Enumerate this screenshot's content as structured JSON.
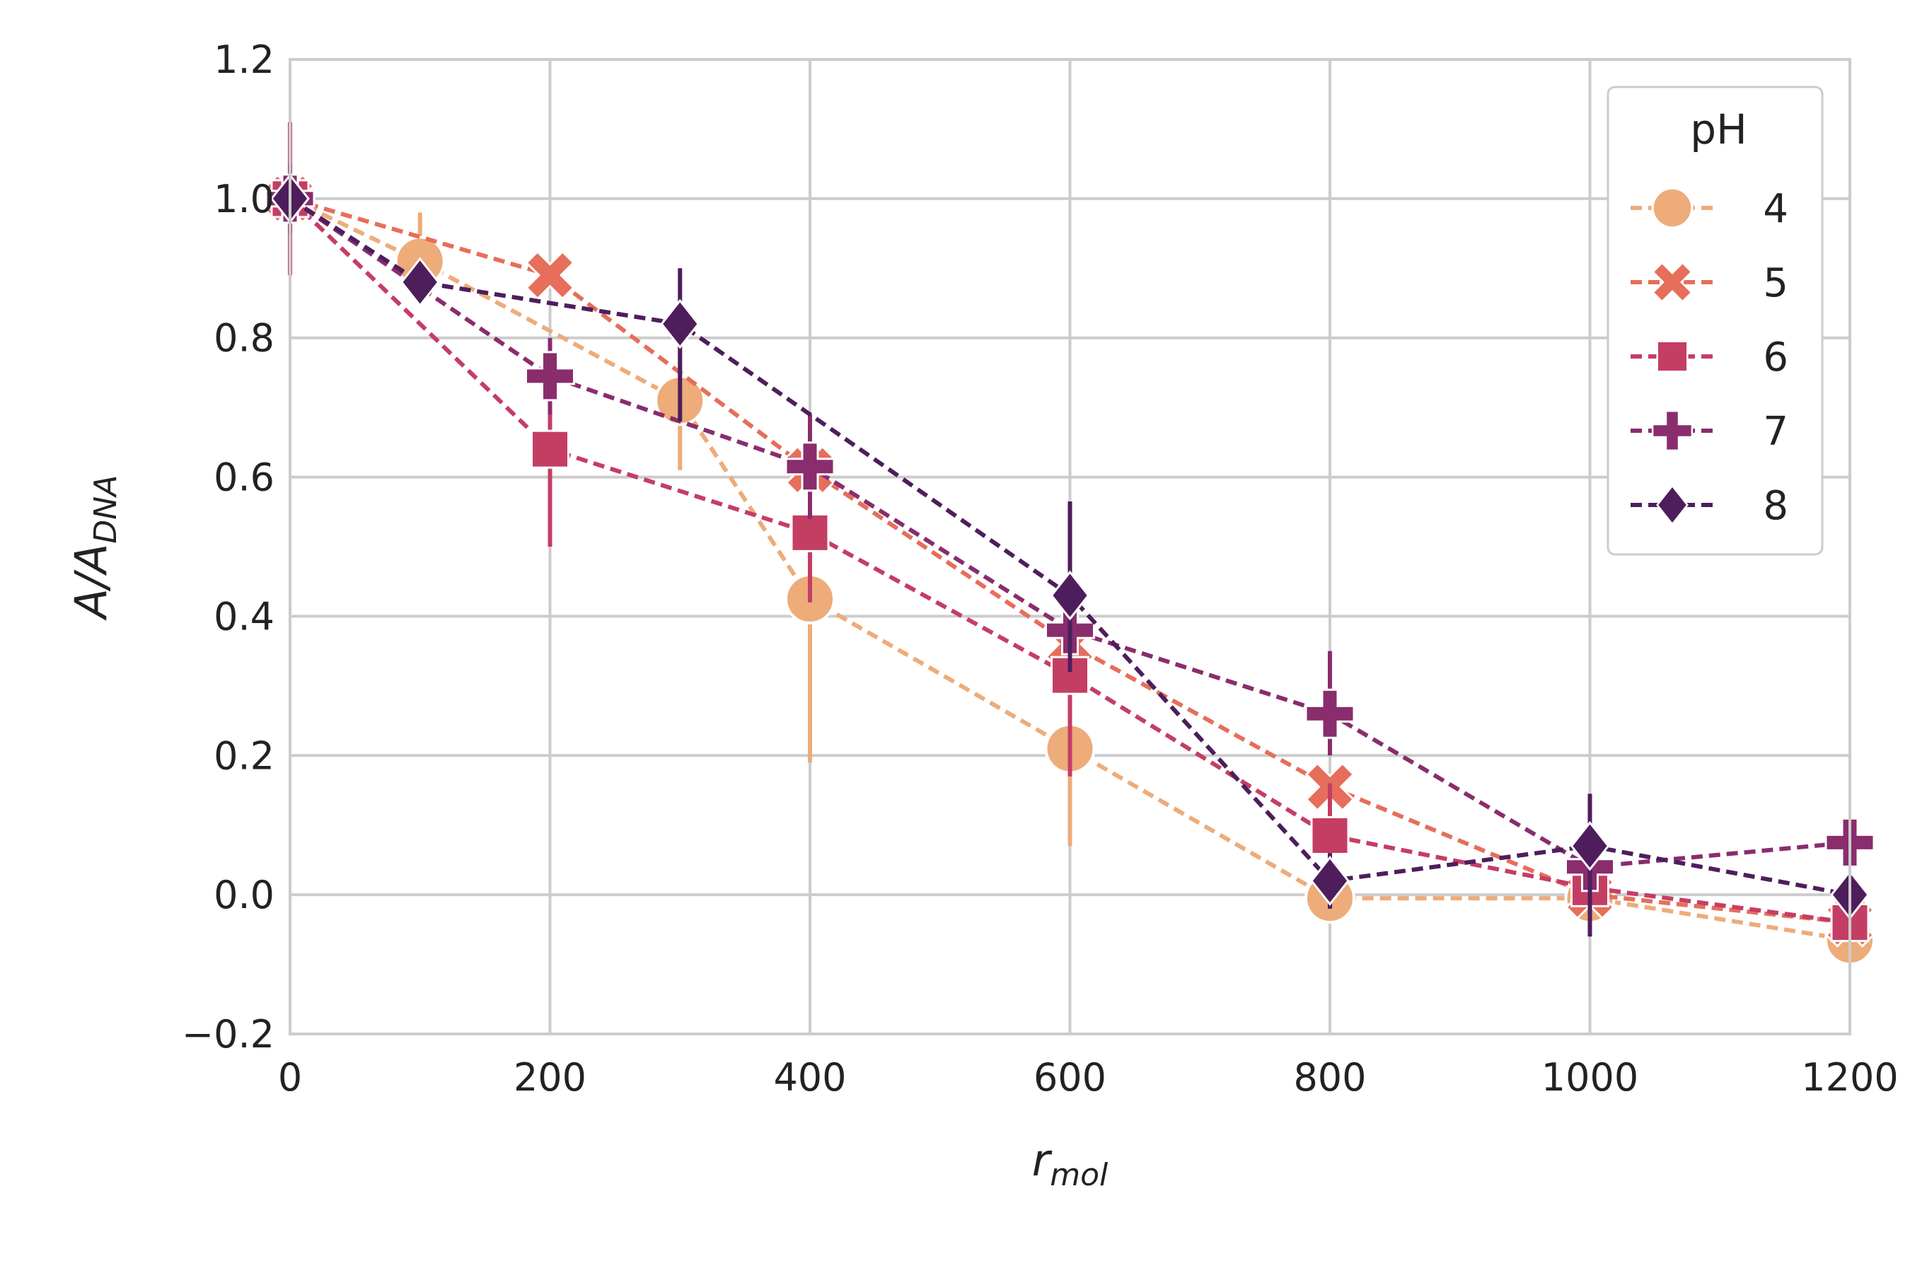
{
  "chart_data": {
    "type": "line",
    "title": "",
    "xlabel": {
      "main": "r",
      "sub": "mol"
    },
    "ylabel": {
      "main": "A/A",
      "sub": "DNA"
    },
    "xlim": [
      0,
      1200
    ],
    "ylim": [
      -0.2,
      1.2
    ],
    "xticks": [
      0,
      200,
      400,
      600,
      800,
      1000,
      1200
    ],
    "yticks": [
      -0.2,
      0.0,
      0.2,
      0.4,
      0.6,
      0.8,
      1.0,
      1.2
    ],
    "xtick_labels": [
      "0",
      "200",
      "400",
      "600",
      "800",
      "1000",
      "1200"
    ],
    "ytick_labels": [
      "−0.2",
      "0.0",
      "0.2",
      "0.4",
      "0.6",
      "0.8",
      "1.0",
      "1.2"
    ],
    "grid": true,
    "legend": {
      "title": "pH",
      "position": "top-right"
    },
    "series": [
      {
        "name": "4",
        "color": "#edac7a",
        "marker": "circle",
        "points": [
          {
            "x": 0,
            "y": 1.0,
            "lo": 0.93,
            "hi": 1.07
          },
          {
            "x": 100,
            "y": 0.91,
            "lo": 0.85,
            "hi": 0.98
          },
          {
            "x": 300,
            "y": 0.71,
            "lo": 0.61,
            "hi": 0.8
          },
          {
            "x": 400,
            "y": 0.425,
            "lo": 0.19,
            "hi": 0.45
          },
          {
            "x": 600,
            "y": 0.21,
            "lo": 0.07,
            "hi": 0.24
          },
          {
            "x": 800,
            "y": -0.005,
            "lo": -0.02,
            "hi": 0.01
          },
          {
            "x": 1000,
            "y": -0.005,
            "lo": -0.01,
            "hi": 0.01
          },
          {
            "x": 1200,
            "y": -0.065,
            "lo": -0.08,
            "hi": -0.05
          }
        ]
      },
      {
        "name": "5",
        "color": "#e66e5a",
        "marker": "x",
        "points": [
          {
            "x": 0,
            "y": 1.0,
            "lo": 0.96,
            "hi": 1.04
          },
          {
            "x": 200,
            "y": 0.89,
            "lo": 0.88,
            "hi": 0.9
          },
          {
            "x": 400,
            "y": 0.61,
            "lo": 0.59,
            "hi": 0.63
          },
          {
            "x": 600,
            "y": 0.36,
            "lo": 0.34,
            "hi": 0.38
          },
          {
            "x": 800,
            "y": 0.155,
            "lo": 0.14,
            "hi": 0.17
          },
          {
            "x": 1000,
            "y": 0.0,
            "lo": -0.01,
            "hi": 0.01
          },
          {
            "x": 1200,
            "y": -0.04,
            "lo": -0.05,
            "hi": -0.03
          }
        ]
      },
      {
        "name": "6",
        "color": "#c43e64",
        "marker": "square",
        "points": [
          {
            "x": 0,
            "y": 1.0,
            "lo": 0.89,
            "hi": 1.11
          },
          {
            "x": 200,
            "y": 0.64,
            "lo": 0.5,
            "hi": 0.75
          },
          {
            "x": 400,
            "y": 0.52,
            "lo": 0.42,
            "hi": 0.62
          },
          {
            "x": 600,
            "y": 0.315,
            "lo": 0.17,
            "hi": 0.39
          },
          {
            "x": 800,
            "y": 0.085,
            "lo": 0.02,
            "hi": 0.16
          },
          {
            "x": 1000,
            "y": 0.01,
            "lo": -0.01,
            "hi": 0.03
          },
          {
            "x": 1200,
            "y": -0.04,
            "lo": -0.05,
            "hi": -0.03
          }
        ]
      },
      {
        "name": "7",
        "color": "#892d6d",
        "marker": "plus",
        "points": [
          {
            "x": 0,
            "y": 1.0,
            "lo": 0.95,
            "hi": 1.05
          },
          {
            "x": 200,
            "y": 0.745,
            "lo": 0.69,
            "hi": 0.8
          },
          {
            "x": 400,
            "y": 0.615,
            "lo": 0.54,
            "hi": 0.69
          },
          {
            "x": 600,
            "y": 0.38,
            "lo": 0.34,
            "hi": 0.42
          },
          {
            "x": 800,
            "y": 0.26,
            "lo": 0.2,
            "hi": 0.35
          },
          {
            "x": 1000,
            "y": 0.04,
            "lo": 0.01,
            "hi": 0.07
          },
          {
            "x": 1200,
            "y": 0.075,
            "lo": 0.05,
            "hi": 0.1
          }
        ]
      },
      {
        "name": "8",
        "color": "#4e1e5c",
        "marker": "diamond",
        "points": [
          {
            "x": 0,
            "y": 1.0,
            "lo": 0.98,
            "hi": 1.02
          },
          {
            "x": 100,
            "y": 0.88,
            "lo": 0.87,
            "hi": 0.89
          },
          {
            "x": 300,
            "y": 0.82,
            "lo": 0.68,
            "hi": 0.9
          },
          {
            "x": 600,
            "y": 0.43,
            "lo": 0.32,
            "hi": 0.565
          },
          {
            "x": 800,
            "y": 0.02,
            "lo": -0.02,
            "hi": 0.06
          },
          {
            "x": 1000,
            "y": 0.07,
            "lo": -0.06,
            "hi": 0.145
          },
          {
            "x": 1200,
            "y": 0.0,
            "lo": -0.02,
            "hi": 0.02
          }
        ]
      }
    ]
  }
}
